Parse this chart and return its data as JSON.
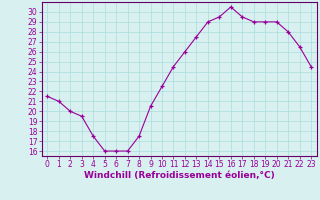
{
  "x": [
    0,
    1,
    2,
    3,
    4,
    5,
    6,
    7,
    8,
    9,
    10,
    11,
    12,
    13,
    14,
    15,
    16,
    17,
    18,
    19,
    20,
    21,
    22,
    23
  ],
  "y": [
    21.5,
    21.0,
    20.0,
    19.5,
    17.5,
    16.0,
    16.0,
    16.0,
    17.5,
    20.5,
    22.5,
    24.5,
    26.0,
    27.5,
    29.0,
    29.5,
    30.5,
    29.5,
    29.0,
    29.0,
    29.0,
    28.0,
    26.5,
    24.5
  ],
  "line_color": "#990099",
  "bg_color": "#d8f0f0",
  "grid_color": "#aadddd",
  "xlabel": "Windchill (Refroidissement éolien,°C)",
  "xlabel_color": "#990099",
  "tick_color": "#990099",
  "spine_color": "#660066",
  "ylim": [
    15.5,
    31.0
  ],
  "xlim": [
    -0.5,
    23.5
  ],
  "yticks": [
    16,
    17,
    18,
    19,
    20,
    21,
    22,
    23,
    24,
    25,
    26,
    27,
    28,
    29,
    30
  ],
  "xticks": [
    0,
    1,
    2,
    3,
    4,
    5,
    6,
    7,
    8,
    9,
    10,
    11,
    12,
    13,
    14,
    15,
    16,
    17,
    18,
    19,
    20,
    21,
    22,
    23
  ],
  "tick_fontsize": 5.5,
  "xlabel_fontsize": 6.5
}
